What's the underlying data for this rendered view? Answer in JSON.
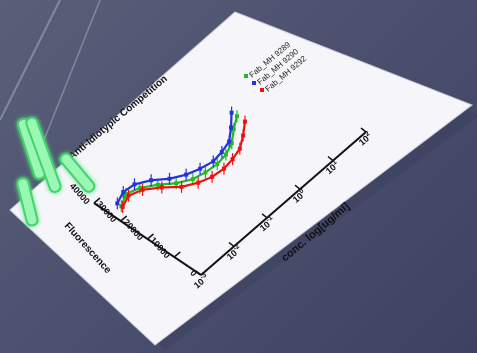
{
  "chart_data": {
    "type": "line",
    "title": "Anti-Idiotypic Competition",
    "xlabel": "conc. log[ug/ml]",
    "ylabel": "Fluorescence",
    "x_scale": "log",
    "xlim": [
      0.001,
      100
    ],
    "ylim": [
      0,
      45000
    ],
    "x_ticks": [
      "10-3",
      "10-2",
      "10-1",
      "100",
      "101",
      "102"
    ],
    "y_ticks": [
      "0",
      "10000",
      "20000",
      "30000",
      "40000"
    ],
    "legend_position": "top-right",
    "series": [
      {
        "name": "Fab_MH 9289",
        "color": "#22bb22",
        "x": [
          0.002,
          0.004,
          0.008,
          0.016,
          0.03,
          0.06,
          0.12,
          0.25,
          0.5,
          1,
          2,
          4
        ],
        "y": [
          33500,
          35500,
          34000,
          31000,
          27500,
          25000,
          24000,
          23500,
          24000,
          25500,
          28500,
          31000
        ]
      },
      {
        "name": "Fab_MH 9290",
        "color": "#2233dd",
        "x": [
          0.002,
          0.004,
          0.008,
          0.016,
          0.03,
          0.06,
          0.12,
          0.25,
          0.5,
          1,
          2,
          4
        ],
        "y": [
          35000,
          36500,
          36000,
          33500,
          30000,
          27500,
          26000,
          25000,
          25500,
          26500,
          29500,
          33000
        ]
      },
      {
        "name": "Fab_MH 9292",
        "color": "#ee1111",
        "x": [
          0.002,
          0.004,
          0.008,
          0.016,
          0.03,
          0.06,
          0.12,
          0.25,
          0.5,
          1,
          2,
          4
        ],
        "y": [
          33000,
          34500,
          33000,
          29500,
          25500,
          23000,
          21500,
          21000,
          21500,
          22500,
          25000,
          28000
        ]
      }
    ]
  },
  "colors": {
    "paper": "#f6f6fa",
    "floor": "#4c5170",
    "glow": "#5ef08a"
  }
}
